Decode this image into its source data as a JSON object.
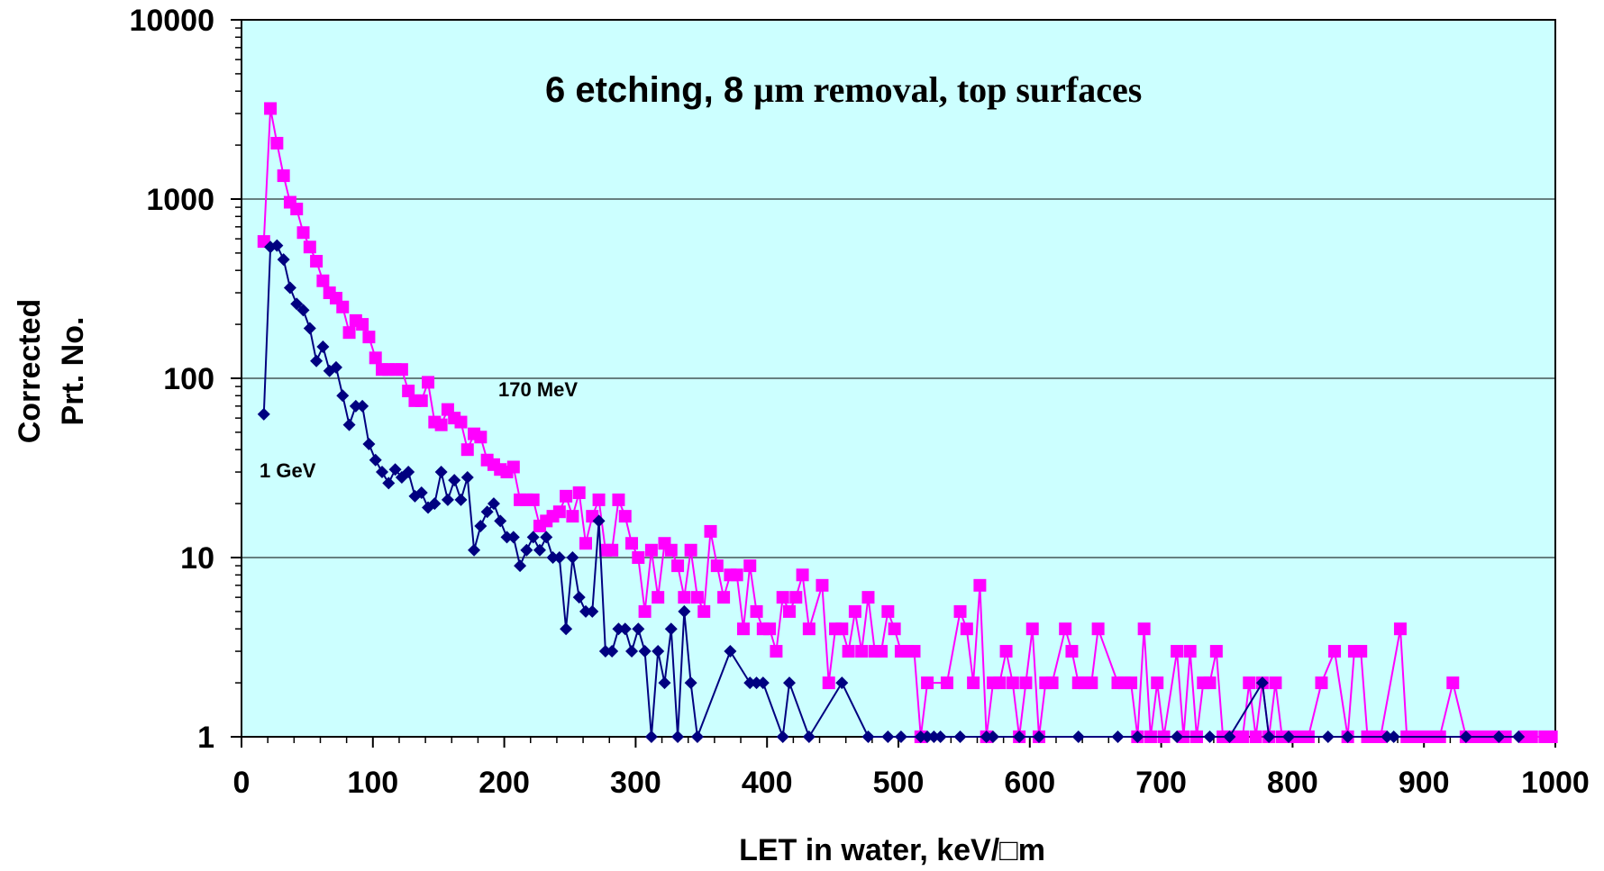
{
  "chart_data": {
    "type": "line",
    "title_part1": "6 etching, 8 ",
    "title_part2": "µm removal, top surfaces",
    "xlabel": "LET in water, keV/□m",
    "ylabel_line1": "Corrected",
    "ylabel_line2": "Prt. No.",
    "xlim": [
      0,
      1000
    ],
    "ylim": [
      1,
      10000
    ],
    "yscale": "log",
    "grid": "horizontal",
    "plot_bg": "#ccffff",
    "x_ticks": [
      "0",
      "100",
      "200",
      "300",
      "400",
      "500",
      "600",
      "700",
      "800",
      "900",
      "1000"
    ],
    "y_ticks": [
      "1",
      "10",
      "100",
      "1000",
      "10000"
    ],
    "series": [
      {
        "name": "170 MeV",
        "color": "#ff00ff",
        "marker": "square",
        "points": [
          [
            17,
            580
          ],
          [
            22,
            3200
          ],
          [
            27,
            2050
          ],
          [
            32,
            1350
          ],
          [
            37,
            960
          ],
          [
            42,
            880
          ],
          [
            47,
            650
          ],
          [
            52,
            540
          ],
          [
            57,
            450
          ],
          [
            62,
            350
          ],
          [
            67,
            300
          ],
          [
            72,
            280
          ],
          [
            77,
            250
          ],
          [
            82,
            180
          ],
          [
            87,
            210
          ],
          [
            92,
            200
          ],
          [
            97,
            170
          ],
          [
            102,
            130
          ],
          [
            107,
            112
          ],
          [
            112,
            112
          ],
          [
            117,
            112
          ],
          [
            122,
            112
          ],
          [
            127,
            85
          ],
          [
            132,
            75
          ],
          [
            137,
            75
          ],
          [
            142,
            95
          ],
          [
            147,
            57
          ],
          [
            152,
            55
          ],
          [
            157,
            67
          ],
          [
            162,
            60
          ],
          [
            167,
            57
          ],
          [
            172,
            40
          ],
          [
            177,
            49
          ],
          [
            182,
            47
          ],
          [
            187,
            35
          ],
          [
            192,
            33
          ],
          [
            197,
            31
          ],
          [
            202,
            30
          ],
          [
            207,
            32
          ],
          [
            212,
            21
          ],
          [
            217,
            21
          ],
          [
            222,
            21
          ],
          [
            227,
            15
          ],
          [
            232,
            16
          ],
          [
            237,
            17
          ],
          [
            242,
            18
          ],
          [
            247,
            22
          ],
          [
            252,
            17
          ],
          [
            257,
            23
          ],
          [
            262,
            12
          ],
          [
            267,
            17
          ],
          [
            272,
            21
          ],
          [
            277,
            11
          ],
          [
            282,
            11
          ],
          [
            287,
            21
          ],
          [
            292,
            17
          ],
          [
            297,
            12
          ],
          [
            302,
            10
          ],
          [
            307,
            5
          ],
          [
            312,
            11
          ],
          [
            317,
            6
          ],
          [
            322,
            12
          ],
          [
            327,
            11
          ],
          [
            332,
            9
          ],
          [
            337,
            6
          ],
          [
            342,
            11
          ],
          [
            347,
            6
          ],
          [
            352,
            5
          ],
          [
            357,
            14
          ],
          [
            362,
            9
          ],
          [
            367,
            6
          ],
          [
            372,
            8
          ],
          [
            377,
            8
          ],
          [
            382,
            4
          ],
          [
            387,
            9
          ],
          [
            392,
            5
          ],
          [
            397,
            4
          ],
          [
            402,
            4
          ],
          [
            407,
            3
          ],
          [
            412,
            6
          ],
          [
            417,
            5
          ],
          [
            422,
            6
          ],
          [
            427,
            8
          ],
          [
            432,
            4
          ],
          [
            442,
            7
          ],
          [
            447,
            2
          ],
          [
            452,
            4
          ],
          [
            457,
            4
          ],
          [
            462,
            3
          ],
          [
            467,
            5
          ],
          [
            472,
            3
          ],
          [
            477,
            6
          ],
          [
            482,
            3
          ],
          [
            487,
            3
          ],
          [
            492,
            5
          ],
          [
            497,
            4
          ],
          [
            502,
            3
          ],
          [
            507,
            3
          ],
          [
            512,
            3
          ],
          [
            517,
            1
          ],
          [
            522,
            2
          ],
          [
            537,
            2
          ],
          [
            547,
            5
          ],
          [
            552,
            4
          ],
          [
            557,
            2
          ],
          [
            562,
            7
          ],
          [
            567,
            1
          ],
          [
            572,
            2
          ],
          [
            577,
            2
          ],
          [
            582,
            3
          ],
          [
            587,
            2
          ],
          [
            592,
            1
          ],
          [
            597,
            2
          ],
          [
            602,
            4
          ],
          [
            607,
            1
          ],
          [
            612,
            2
          ],
          [
            617,
            2
          ],
          [
            627,
            4
          ],
          [
            632,
            3
          ],
          [
            637,
            2
          ],
          [
            642,
            2
          ],
          [
            647,
            2
          ],
          [
            652,
            4
          ],
          [
            667,
            2
          ],
          [
            672,
            2
          ],
          [
            677,
            2
          ],
          [
            682,
            1
          ],
          [
            687,
            4
          ],
          [
            692,
            1
          ],
          [
            697,
            2
          ],
          [
            702,
            1
          ],
          [
            712,
            3
          ],
          [
            717,
            1
          ],
          [
            722,
            3
          ],
          [
            727,
            1
          ],
          [
            732,
            2
          ],
          [
            737,
            2
          ],
          [
            742,
            3
          ],
          [
            747,
            1
          ],
          [
            752,
            1
          ],
          [
            757,
            1
          ],
          [
            762,
            1
          ],
          [
            767,
            2
          ],
          [
            772,
            1
          ],
          [
            777,
            2
          ],
          [
            782,
            1
          ],
          [
            787,
            2
          ],
          [
            792,
            1
          ],
          [
            797,
            1
          ],
          [
            802,
            1
          ],
          [
            807,
            1
          ],
          [
            812,
            1
          ],
          [
            822,
            2
          ],
          [
            832,
            3
          ],
          [
            842,
            1
          ],
          [
            847,
            3
          ],
          [
            852,
            3
          ],
          [
            857,
            1
          ],
          [
            862,
            1
          ],
          [
            867,
            1
          ],
          [
            882,
            4
          ],
          [
            887,
            1
          ],
          [
            892,
            1
          ],
          [
            897,
            1
          ],
          [
            902,
            1
          ],
          [
            907,
            1
          ],
          [
            912,
            1
          ],
          [
            922,
            2
          ],
          [
            932,
            1
          ],
          [
            937,
            1
          ],
          [
            942,
            1
          ],
          [
            947,
            1
          ],
          [
            952,
            1
          ],
          [
            957,
            1
          ],
          [
            962,
            1
          ],
          [
            977,
            1
          ],
          [
            982,
            1
          ],
          [
            992,
            1
          ],
          [
            997,
            1
          ]
        ]
      },
      {
        "name": "1 GeV",
        "color": "#000080",
        "marker": "diamond",
        "points": [
          [
            17,
            63
          ],
          [
            22,
            540
          ],
          [
            27,
            550
          ],
          [
            32,
            460
          ],
          [
            37,
            320
          ],
          [
            42,
            260
          ],
          [
            47,
            240
          ],
          [
            52,
            190
          ],
          [
            57,
            125
          ],
          [
            62,
            150
          ],
          [
            67,
            110
          ],
          [
            72,
            115
          ],
          [
            77,
            80
          ],
          [
            82,
            55
          ],
          [
            87,
            70
          ],
          [
            92,
            70
          ],
          [
            97,
            43
          ],
          [
            102,
            35
          ],
          [
            107,
            30
          ],
          [
            112,
            26
          ],
          [
            117,
            31
          ],
          [
            122,
            28
          ],
          [
            127,
            30
          ],
          [
            132,
            22
          ],
          [
            137,
            23
          ],
          [
            142,
            19
          ],
          [
            147,
            20
          ],
          [
            152,
            30
          ],
          [
            157,
            21
          ],
          [
            162,
            27
          ],
          [
            167,
            21
          ],
          [
            172,
            28
          ],
          [
            177,
            11
          ],
          [
            182,
            15
          ],
          [
            187,
            18
          ],
          [
            192,
            20
          ],
          [
            197,
            16
          ],
          [
            202,
            13
          ],
          [
            207,
            13
          ],
          [
            212,
            9
          ],
          [
            217,
            11
          ],
          [
            222,
            13
          ],
          [
            227,
            11
          ],
          [
            232,
            13
          ],
          [
            237,
            10
          ],
          [
            242,
            10
          ],
          [
            247,
            4
          ],
          [
            252,
            10
          ],
          [
            257,
            6
          ],
          [
            262,
            5
          ],
          [
            267,
            5
          ],
          [
            272,
            16
          ],
          [
            277,
            3
          ],
          [
            282,
            3
          ],
          [
            287,
            4
          ],
          [
            292,
            4
          ],
          [
            297,
            3
          ],
          [
            302,
            4
          ],
          [
            307,
            3
          ],
          [
            312,
            1
          ],
          [
            317,
            3
          ],
          [
            322,
            2
          ],
          [
            327,
            4
          ],
          [
            332,
            1
          ],
          [
            337,
            5
          ],
          [
            342,
            2
          ],
          [
            347,
            1
          ],
          [
            372,
            3
          ],
          [
            387,
            2
          ],
          [
            392,
            2
          ],
          [
            397,
            2
          ],
          [
            412,
            1
          ],
          [
            417,
            2
          ],
          [
            432,
            1
          ],
          [
            457,
            2
          ],
          [
            477,
            1
          ],
          [
            492,
            1
          ],
          [
            502,
            1
          ],
          [
            517,
            1
          ],
          [
            522,
            1
          ],
          [
            527,
            1
          ],
          [
            532,
            1
          ],
          [
            547,
            1
          ],
          [
            567,
            1
          ],
          [
            572,
            1
          ],
          [
            592,
            1
          ],
          [
            607,
            1
          ],
          [
            637,
            1
          ],
          [
            667,
            1
          ],
          [
            682,
            1
          ],
          [
            712,
            1
          ],
          [
            737,
            1
          ],
          [
            752,
            1
          ],
          [
            777,
            2
          ],
          [
            782,
            1
          ],
          [
            797,
            1
          ],
          [
            827,
            1
          ],
          [
            842,
            1
          ],
          [
            872,
            1
          ],
          [
            877,
            1
          ],
          [
            932,
            1
          ],
          [
            957,
            1
          ],
          [
            972,
            1
          ]
        ]
      }
    ]
  }
}
